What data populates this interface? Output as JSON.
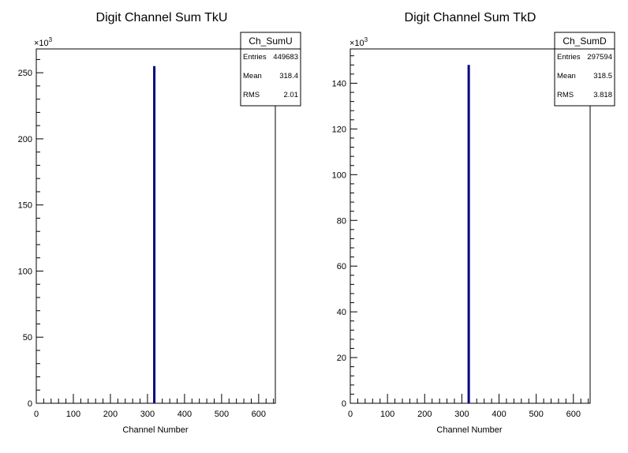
{
  "chart_data": [
    {
      "type": "bar",
      "title": "Digit Channel Sum TkU",
      "xlabel": "Channel Number",
      "ylabel": "",
      "y_multiplier": "×10",
      "y_multiplier_exp": "3",
      "xlim": [
        0,
        645
      ],
      "ylim": [
        0,
        268
      ],
      "xticks": [
        0,
        100,
        200,
        300,
        400,
        500,
        600
      ],
      "yticks": [
        0,
        50,
        100,
        150,
        200,
        250
      ],
      "bars": [
        {
          "x": 318.4,
          "value": 255
        }
      ],
      "bar_color": "#000080",
      "stats": {
        "name": "Ch_SumU",
        "rows": [
          {
            "label": "Entries",
            "value": "449683"
          },
          {
            "label": "Mean",
            "value": "318.4"
          },
          {
            "label": "RMS",
            "value": "2.01"
          }
        ]
      }
    },
    {
      "type": "bar",
      "title": "Digit Channel Sum TkD",
      "xlabel": "Channel Number",
      "ylabel": "",
      "y_multiplier": "×10",
      "y_multiplier_exp": "3",
      "xlim": [
        0,
        645
      ],
      "ylim": [
        0,
        155
      ],
      "xticks": [
        0,
        100,
        200,
        300,
        400,
        500,
        600
      ],
      "yticks": [
        0,
        20,
        40,
        60,
        80,
        100,
        120,
        140
      ],
      "bars": [
        {
          "x": 318.5,
          "value": 148
        }
      ],
      "bar_color": "#000080",
      "stats": {
        "name": "Ch_SumD",
        "rows": [
          {
            "label": "Entries",
            "value": "297594"
          },
          {
            "label": "Mean",
            "value": "318.5"
          },
          {
            "label": "RMS",
            "value": "3.818"
          }
        ]
      }
    }
  ]
}
